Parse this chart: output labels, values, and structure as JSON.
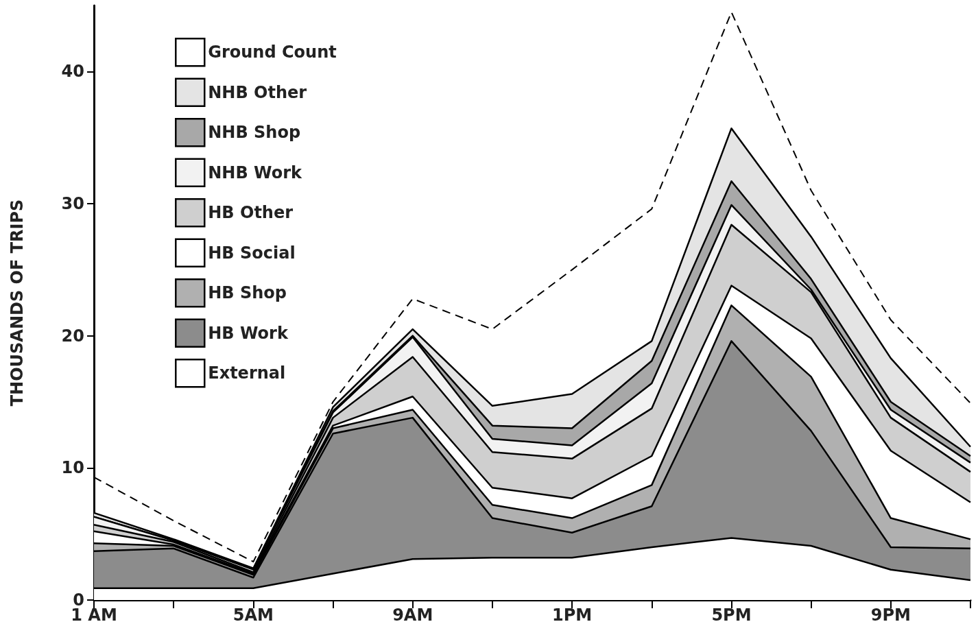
{
  "chart_data": {
    "type": "area",
    "stacked": true,
    "ylabel": "THOUSANDS OF TRIPS",
    "legend": "top left",
    "grid": false,
    "marker": "none",
    "categories": [
      "1 AM",
      null,
      "5AM",
      null,
      "9AM",
      null,
      "1PM",
      null,
      "5PM",
      null,
      "9PM",
      null
    ],
    "ylim": [
      0,
      45
    ],
    "yticks": [
      0,
      10,
      20,
      30,
      40
    ],
    "series": [
      {
        "name": "External",
        "color": "#ffffff",
        "values": [
          0.9,
          0.9,
          0.9,
          2.0,
          3.1,
          3.2,
          3.2,
          4.0,
          4.7,
          4.1,
          2.3,
          1.5
        ]
      },
      {
        "name": "HB Work",
        "color": "#8c8c8c",
        "values": [
          2.8,
          3.0,
          0.8,
          10.6,
          10.7,
          3.0,
          1.9,
          3.1,
          14.9,
          8.7,
          1.7,
          2.4
        ]
      },
      {
        "name": "HB Shop",
        "color": "#b0b0b0",
        "values": [
          0.6,
          0.2,
          0.2,
          0.4,
          0.6,
          1.0,
          1.1,
          1.6,
          2.7,
          4.1,
          2.2,
          0.7
        ]
      },
      {
        "name": "HB Social",
        "color": "#ffffff",
        "values": [
          0.9,
          0.1,
          0.1,
          0.2,
          1.0,
          1.3,
          1.5,
          2.2,
          1.5,
          2.9,
          5.1,
          2.8
        ]
      },
      {
        "name": "HB Other",
        "color": "#cfcfcf",
        "values": [
          0.5,
          0.2,
          0.1,
          0.6,
          3.0,
          2.7,
          3.0,
          3.6,
          4.6,
          3.5,
          2.5,
          2.3
        ]
      },
      {
        "name": "NHB Work",
        "color": "#f2f2f2",
        "values": [
          0.6,
          0.1,
          0.2,
          0.4,
          1.5,
          1.0,
          1.0,
          1.9,
          1.5,
          0.2,
          0.6,
          0.7
        ]
      },
      {
        "name": "NHB Shop",
        "color": "#a8a8a8",
        "values": [
          0.0,
          0.0,
          0.0,
          0.1,
          0.1,
          1.0,
          1.3,
          1.7,
          1.8,
          0.8,
          0.6,
          0.5
        ]
      },
      {
        "name": "NHB Other",
        "color": "#e4e4e4",
        "values": [
          0.3,
          0.1,
          0.1,
          0.3,
          0.5,
          1.5,
          2.6,
          1.5,
          4.0,
          3.2,
          3.3,
          0.7
        ]
      },
      {
        "name": "Ground Count",
        "type": "line",
        "line_style": "dashed",
        "color": "#000000",
        "values": [
          9.3,
          6.0,
          2.9,
          15.0,
          22.8,
          20.5,
          25.0,
          29.6,
          44.5,
          31.0,
          21.2,
          14.9
        ]
      }
    ]
  }
}
